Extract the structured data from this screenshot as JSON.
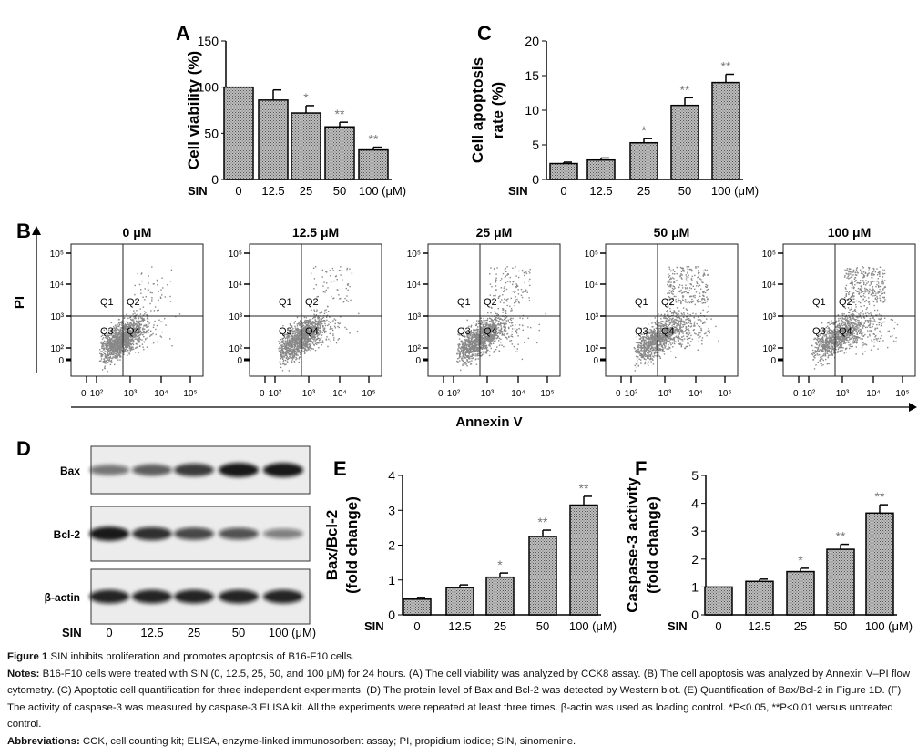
{
  "figure": {
    "panel_letters": [
      "A",
      "B",
      "C",
      "D",
      "E",
      "F"
    ],
    "x_prefix": "SIN",
    "concentrations": [
      "0",
      "12.5",
      "25",
      "50",
      "100 (μM)"
    ]
  },
  "chart_data": [
    {
      "id": "A",
      "type": "bar",
      "title": "",
      "xlabel": "SIN",
      "ylabel": "Cell viability (%)",
      "categories": [
        "0",
        "12.5",
        "25",
        "50",
        "100 (μM)"
      ],
      "values": [
        100,
        86,
        72,
        57,
        32
      ],
      "errors": [
        0,
        11,
        8,
        5,
        3
      ],
      "significance": [
        "",
        "",
        "*",
        "**",
        "**"
      ],
      "ylim": [
        0,
        150
      ],
      "yticks": [
        0,
        50,
        100,
        150
      ]
    },
    {
      "id": "C",
      "type": "bar",
      "title": "",
      "xlabel": "SIN",
      "ylabel": [
        "Cell apoptosis",
        "rate (%)"
      ],
      "categories": [
        "0",
        "12.5",
        "25",
        "50",
        "100 (μM)"
      ],
      "values": [
        2.3,
        2.8,
        5.3,
        10.7,
        14.0
      ],
      "errors": [
        0.2,
        0.3,
        0.6,
        1.1,
        1.2
      ],
      "significance": [
        "",
        "",
        "*",
        "**",
        "**"
      ],
      "ylim": [
        0,
        20
      ],
      "yticks": [
        0,
        5,
        10,
        15,
        20
      ]
    },
    {
      "id": "E",
      "type": "bar",
      "title": "",
      "xlabel": "SIN",
      "ylabel": [
        "Bax/Bcl-2",
        "(fold change)"
      ],
      "categories": [
        "0",
        "12.5",
        "25",
        "50",
        "100 (μM)"
      ],
      "values": [
        0.45,
        0.78,
        1.08,
        2.25,
        3.15
      ],
      "errors": [
        0.05,
        0.08,
        0.12,
        0.18,
        0.25
      ],
      "significance": [
        "",
        "",
        "*",
        "**",
        "**"
      ],
      "ylim": [
        0,
        4
      ],
      "yticks": [
        0,
        1,
        2,
        3,
        4
      ]
    },
    {
      "id": "F",
      "type": "bar",
      "title": "",
      "xlabel": "SIN",
      "ylabel": [
        "Caspase-3 activity",
        "(fold change)"
      ],
      "categories": [
        "0",
        "12.5",
        "25",
        "50",
        "100 (μM)"
      ],
      "values": [
        1.0,
        1.2,
        1.55,
        2.35,
        3.65
      ],
      "errors": [
        0,
        0.08,
        0.12,
        0.18,
        0.3
      ],
      "significance": [
        "",
        "",
        "*",
        "**",
        "**"
      ],
      "ylim": [
        0,
        5
      ],
      "yticks": [
        0,
        1,
        2,
        3,
        4,
        5
      ]
    },
    {
      "id": "B",
      "type": "scatter",
      "xlabel": "Annexin V",
      "ylabel": "PI",
      "panel_titles": [
        "0 μM",
        "12.5 μM",
        "25 μM",
        "50 μM",
        "100 μM"
      ],
      "quadrants": [
        "Q1",
        "Q2",
        "Q3",
        "Q4"
      ],
      "xticks": [
        "0",
        "10²",
        "10³",
        "10⁴",
        "10⁵"
      ],
      "yticks": [
        "0",
        "10²",
        "10³",
        "10⁴",
        "10⁵"
      ],
      "apoptosis_fraction": [
        0.08,
        0.1,
        0.18,
        0.35,
        0.45
      ]
    }
  ],
  "western_blot": {
    "rows": [
      "Bax",
      "Bcl-2",
      "β-actin"
    ],
    "relative_intensity": [
      [
        0.55,
        0.65,
        0.8,
        0.95,
        0.95
      ],
      [
        0.95,
        0.85,
        0.75,
        0.7,
        0.5
      ],
      [
        0.9,
        0.9,
        0.9,
        0.9,
        0.9
      ]
    ]
  },
  "caption": {
    "title_label": "Figure 1",
    "title_text": " SIN inhibits proliferation and promotes apoptosis of B16-F10 cells.",
    "notes_label": "Notes:",
    "notes_text": " B16-F10 cells were treated with SIN (0, 12.5, 25, 50, and 100 μM) for 24 hours. (A) The cell viability was analyzed by CCK8 assay. (B) The cell apoptosis was analyzed by Annexin V–PI flow cytometry. (C) Apoptotic cell quantification for three independent experiments. (D) The protein level of Bax and Bcl-2 was detected by Western blot. (E) Quantification of Bax/Bcl-2 in Figure 1D. (F) The activity of caspase-3 was measured by caspase-3 ELISA kit. All the experiments were repeated at least three times. β-actin was used as loading control. *P<0.05, **P<0.01 versus untreated control.",
    "abbrev_label": "Abbreviations:",
    "abbrev_text": " CCK, cell counting kit; ELISA, enzyme-linked immunosorbent assay; PI, propidium iodide; SIN, sinomenine."
  }
}
